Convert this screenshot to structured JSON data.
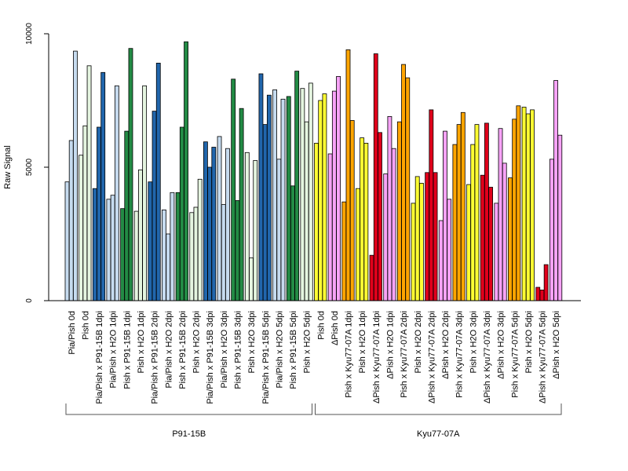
{
  "chart_data": {
    "type": "bar",
    "ylabel": "Raw Signal",
    "xlabel": "",
    "ylim": [
      0,
      10000
    ],
    "yticks": [
      0,
      5000,
      10000
    ],
    "grid": false,
    "legend": "none",
    "bars_per_category": 3,
    "colors": {
      "light_blue": "#c6dbef",
      "light_green": "#e5f5e0",
      "dark_blue": "#2166ac",
      "dark_green": "#238b45",
      "yellow": "#ffff33",
      "pink": "#f7a3f7",
      "orange": "#ffa500",
      "red": "#e0001b",
      "outline": "#000000",
      "axis": "#000000",
      "bracket": "#555555"
    },
    "categories": [
      "Pia/Pish 0d",
      "Pish 0d",
      "Pia/Pish x P91-15B 1dpi",
      "Pia/Pish x H2O 1dpi",
      "Pish x P91-15B 1dpi",
      "Pish x H2O 1dpi",
      "Pia/Pish x P91-15B 2dpi",
      "Pia/Pish x H2O 2dpi",
      "Pish x P91-15B 2dpi",
      "Pish x H2O 2dpi",
      "Pia/Pish x P91-15B 3dpi",
      "Pia/Pish x H2O 3dpi",
      "Pish x P91-15B 3dpi",
      "Pish x H2O 3dpi",
      "Pia/Pish x P91-15B 5dpi",
      "Pia/Pish x H2O 5dpi",
      "Pish x P91-15B 5dpi",
      "Pish x H2O 5dpi",
      "Pish 0d",
      "ΔPish 0d",
      "Pish x Kyu77-07A 1dpi",
      "Pish x H2O 1dpi",
      "ΔPish x Kyu77-07A 1dpi",
      "ΔPish x H2O 1dpi",
      "Pish x Kyu77-07A 2dpi",
      "Pish x H2O 2dpi",
      "ΔPish x Kyu77-07A 2dpi",
      "ΔPish x H2O 2dpi",
      "Pish x Kyu77-07A 3dpi",
      "Pish x H2O 3dpi",
      "ΔPish x Kyu77-07A 3dpi",
      "ΔPish x H2O 3dpi",
      "Pish x Kyu77-07A 5dpi",
      "Pish x H2O 5dpi",
      "ΔPish x Kyu77-07A 5dpi",
      "ΔPish x H2O 5dpi"
    ],
    "category_colors": [
      "light_blue",
      "light_green",
      "dark_blue",
      "light_blue",
      "dark_green",
      "light_green",
      "dark_blue",
      "light_blue",
      "dark_green",
      "light_green",
      "dark_blue",
      "light_blue",
      "dark_green",
      "light_green",
      "dark_blue",
      "light_blue",
      "dark_green",
      "light_green",
      "yellow",
      "pink",
      "orange",
      "yellow",
      "red",
      "pink",
      "orange",
      "yellow",
      "red",
      "pink",
      "orange",
      "yellow",
      "red",
      "pink",
      "orange",
      "yellow",
      "red",
      "pink"
    ],
    "values": [
      [
        4450,
        6000,
        9350
      ],
      [
        5450,
        6550,
        8800
      ],
      [
        4200,
        6500,
        8550
      ],
      [
        3800,
        3950,
        8050
      ],
      [
        3450,
        6350,
        9450
      ],
      [
        3350,
        4900,
        8050
      ],
      [
        4450,
        7100,
        8900
      ],
      [
        3400,
        2500,
        4050
      ],
      [
        4050,
        6500,
        9700
      ],
      [
        3300,
        3500,
        4550
      ],
      [
        5950,
        5000,
        5750
      ],
      [
        6150,
        3600,
        5700
      ],
      [
        8300,
        3750,
        7200
      ],
      [
        5550,
        1600,
        5250
      ],
      [
        8500,
        6600,
        7700
      ],
      [
        7900,
        5300,
        7550
      ],
      [
        7650,
        4300,
        8600
      ],
      [
        7950,
        6700,
        8150
      ],
      [
        5900,
        7500,
        7750
      ],
      [
        5500,
        7850,
        8400
      ],
      [
        3700,
        9400,
        6750
      ],
      [
        4200,
        6100,
        5900
      ],
      [
        1700,
        9250,
        6300
      ],
      [
        4750,
        6900,
        5700
      ],
      [
        6700,
        8850,
        8350
      ],
      [
        3650,
        4650,
        4400
      ],
      [
        4800,
        7150,
        4800
      ],
      [
        3000,
        6350,
        3800
      ],
      [
        5850,
        6600,
        7050
      ],
      [
        4350,
        5850,
        6600
      ],
      [
        4700,
        6650,
        4250
      ],
      [
        3650,
        6450,
        5150
      ],
      [
        4600,
        6800,
        7300
      ],
      [
        7250,
        7000,
        7150
      ],
      [
        500,
        400,
        1350
      ],
      [
        5300,
        8250,
        6200
      ]
    ],
    "groups": [
      {
        "label": "P91-15B",
        "start": 0,
        "end": 17
      },
      {
        "label": "Kyu77-07A",
        "start": 18,
        "end": 35
      }
    ]
  }
}
